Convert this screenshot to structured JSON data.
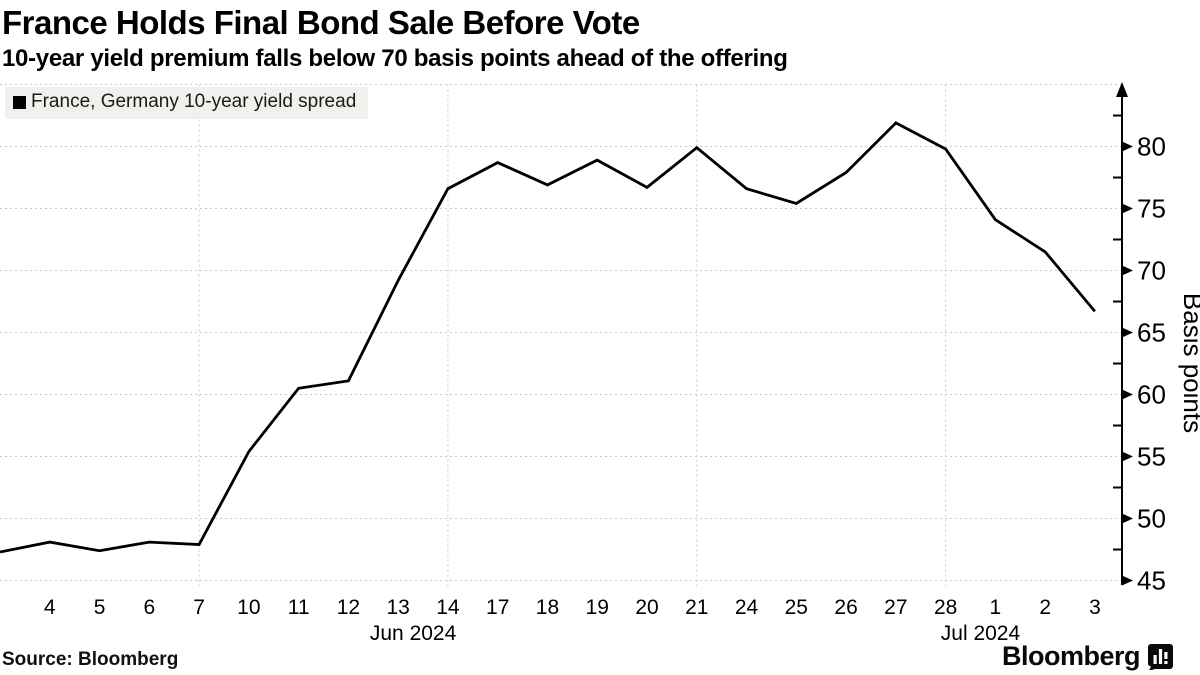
{
  "header": {
    "title": "France Holds Final Bond Sale Before Vote",
    "subtitle": "10-year yield premium falls below 70 basis points ahead of the offering"
  },
  "legend": {
    "label": "France, Germany 10-year yield spread",
    "marker_color": "#000000"
  },
  "footer": {
    "source": "Source: Bloomberg",
    "brand": "Bloomberg"
  },
  "chart_data": {
    "type": "line",
    "title": "France Holds Final Bond Sale Before Vote",
    "xlabel": "",
    "ylabel": "Basis points",
    "ylim": [
      45,
      85
    ],
    "yticks": [
      45,
      50,
      55,
      60,
      65,
      70,
      75,
      80
    ],
    "grid": true,
    "legend_position": "top-left",
    "line_color": "#000000",
    "gridline_color": "#c9c9c9",
    "x_labels": [
      "4",
      "5",
      "6",
      "7",
      "10",
      "11",
      "12",
      "13",
      "14",
      "17",
      "18",
      "19",
      "20",
      "21",
      "24",
      "25",
      "26",
      "27",
      "28",
      "1",
      "2",
      "3"
    ],
    "month_labels": [
      {
        "text": "Jun 2024",
        "center_index": 8.3
      },
      {
        "text": "Jul 2024",
        "center_index": 19.7
      }
    ],
    "vertical_gridline_indices": [
      4,
      9,
      14,
      19
    ],
    "series": [
      {
        "name": "France, Germany 10-year yield spread",
        "color": "#000000",
        "dates": [
          "Jun 3",
          "Jun 4",
          "Jun 5",
          "Jun 6",
          "Jun 7",
          "Jun 10",
          "Jun 11",
          "Jun 12",
          "Jun 13",
          "Jun 14",
          "Jun 17",
          "Jun 18",
          "Jun 19",
          "Jun 20",
          "Jun 21",
          "Jun 24",
          "Jun 25",
          "Jun 26",
          "Jun 27",
          "Jun 28",
          "Jul 1",
          "Jul 2",
          "Jul 3"
        ],
        "values": [
          47.3,
          48.1,
          47.4,
          48.1,
          47.9,
          55.4,
          60.5,
          61.1,
          69.2,
          76.6,
          78.7,
          76.9,
          78.9,
          76.7,
          79.9,
          76.6,
          75.4,
          77.9,
          81.9,
          79.8,
          74.1,
          71.5,
          66.7
        ]
      }
    ]
  }
}
